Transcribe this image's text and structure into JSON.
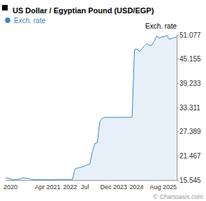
{
  "chart_data": {
    "type": "line",
    "title": "US Dollar / Egyptian Pound (USD/EGP)",
    "ylabel": "Exch. rate",
    "annotations": [
      "© Chartoasis.com"
    ],
    "x": [
      null,
      null,
      "2020",
      null,
      null,
      null,
      null,
      null,
      null,
      null,
      null,
      null,
      null,
      null,
      null,
      null,
      null,
      "Apr 2021",
      null,
      null,
      null,
      null,
      null,
      null,
      null,
      null,
      "2022",
      null,
      null,
      null,
      null,
      null,
      "Jul",
      null,
      null,
      null,
      null,
      null,
      null,
      null,
      null,
      null,
      null,
      null,
      null,
      null,
      null,
      null,
      null,
      "Dec 2023",
      "2024",
      null,
      null,
      null,
      null,
      null,
      null,
      null,
      null,
      null,
      null,
      null,
      null,
      null,
      null,
      null,
      null,
      null,
      null,
      "Aug 2025"
    ],
    "series": [
      {
        "name": "Exch. rate",
        "color": "#3d85c6",
        "values": [
          16.1,
          16.0,
          15.8,
          15.6,
          15.7,
          15.75,
          15.8,
          16.1,
          16.0,
          15.95,
          15.8,
          15.7,
          15.65,
          15.7,
          15.7,
          15.65,
          15.7,
          15.65,
          15.65,
          15.65,
          15.7,
          15.7,
          15.7,
          15.7,
          15.7,
          15.7,
          15.7,
          15.7,
          18.3,
          18.5,
          18.6,
          18.8,
          19.0,
          19.3,
          19.5,
          22.5,
          24.5,
          24.7,
          29.9,
          30.6,
          30.9,
          30.9,
          30.9,
          30.9,
          30.9,
          30.9,
          30.9,
          30.9,
          30.9,
          30.9,
          30.9,
          30.9,
          47.5,
          47.6,
          47.0,
          47.7,
          48.4,
          48.9,
          48.5,
          48.6,
          49.6,
          50.8,
          50.3,
          50.6,
          50.6,
          51.0,
          50.0,
          50.2,
          50.4,
          50.6
        ]
      }
    ],
    "ylim": [
      15.545,
      51.077
    ],
    "yticks": [
      15.545,
      21.467,
      27.389,
      33.311,
      39.233,
      45.155,
      51.077
    ],
    "grid": false,
    "legend": "top-left"
  }
}
